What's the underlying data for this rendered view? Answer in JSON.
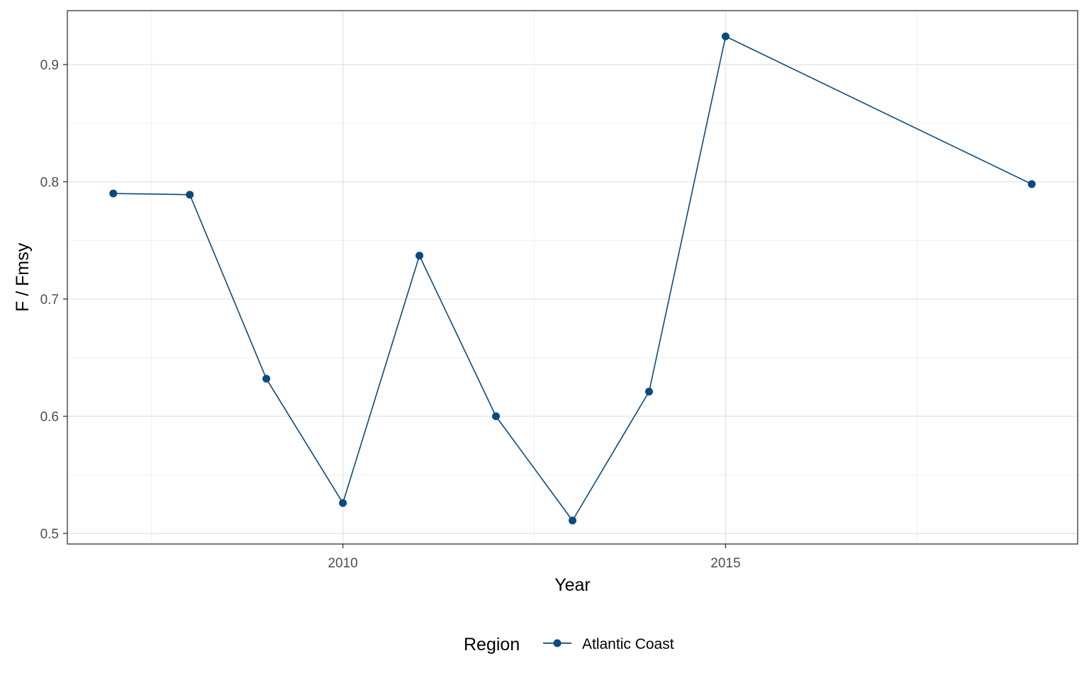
{
  "chart_data": {
    "type": "line",
    "xlabel": "Year",
    "ylabel": "F / Fmsy",
    "xlim": [
      2006.4,
      2019.6
    ],
    "ylim": [
      0.491,
      0.946
    ],
    "x_ticks": [
      2010,
      2015
    ],
    "x_minor_ticks": [
      2007.5,
      2012.5,
      2017.5
    ],
    "y_ticks": [
      0.5,
      0.6,
      0.7,
      0.8,
      0.9
    ],
    "y_tick_labels": [
      "0.5",
      "0.6",
      "0.7",
      "0.8",
      "0.9"
    ],
    "y_minor_ticks": [
      0.55,
      0.65,
      0.75,
      0.85
    ],
    "x_tick_labels": [
      "2010",
      "2015"
    ],
    "grid": true,
    "legend": {
      "title": "Region",
      "position": "bottom"
    },
    "series": [
      {
        "name": "Atlantic Coast",
        "color": "#0b4a7d",
        "x": [
          2007,
          2008,
          2009,
          2010,
          2011,
          2012,
          2013,
          2014,
          2015,
          2019
        ],
        "values": [
          0.79,
          0.789,
          0.632,
          0.526,
          0.737,
          0.6,
          0.511,
          0.621,
          0.924,
          0.798
        ]
      }
    ]
  }
}
